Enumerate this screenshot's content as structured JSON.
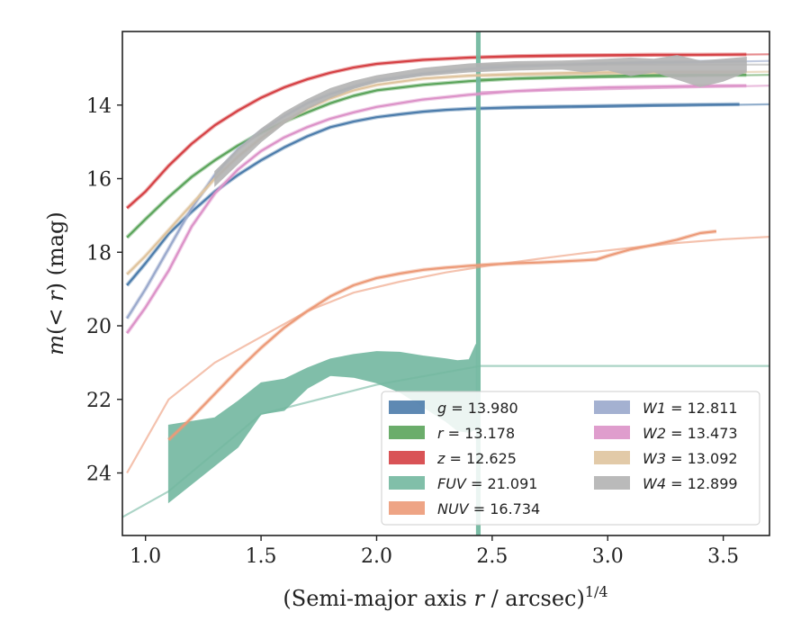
{
  "chart_data": {
    "type": "line",
    "title": "",
    "xlabel": "(Semi-major axis r / arcsec)",
    "xlabel_parts": {
      "main": "(Semi-major axis ",
      "var": "r",
      "rest": " / arcsec)",
      "sup": "1/4"
    },
    "ylabel": "m(< r) (mag)",
    "ylabel_parts": {
      "m": "m",
      "open": "(",
      "lt": "< ",
      "r": "r",
      "close": ")",
      "unit": " (mag)"
    },
    "xlim": [
      0.9,
      3.7
    ],
    "ylim": [
      25.7,
      12.0
    ],
    "y_inverted": true,
    "xticks": [
      1.0,
      1.5,
      2.0,
      2.5,
      3.0,
      3.5
    ],
    "xtick_labels": [
      "1.0",
      "1.5",
      "2.0",
      "2.5",
      "3.0",
      "3.5"
    ],
    "yticks": [
      14,
      16,
      18,
      20,
      22,
      24
    ],
    "ytick_labels": [
      "14",
      "16",
      "18",
      "20",
      "22",
      "24"
    ],
    "grid": false,
    "legend_position": "bottom-right",
    "series": [
      {
        "name": "g",
        "label": "g = 13.980",
        "color": "#4c7cab",
        "x": [
          0.92,
          1.0,
          1.1,
          1.2,
          1.3,
          1.4,
          1.5,
          1.6,
          1.7,
          1.8,
          1.9,
          2.0,
          2.1,
          2.2,
          2.3,
          2.4,
          2.6,
          2.8,
          3.0,
          3.2,
          3.4,
          3.57
        ],
        "y": [
          18.9,
          18.3,
          17.5,
          16.9,
          16.35,
          15.9,
          15.5,
          15.15,
          14.85,
          14.6,
          14.45,
          14.33,
          14.25,
          14.18,
          14.13,
          14.1,
          14.06,
          14.04,
          14.02,
          14.0,
          13.99,
          13.98
        ],
        "ext_x": [
          2.45,
          3.7
        ],
        "ext_y": [
          14.1,
          13.98
        ]
      },
      {
        "name": "r",
        "label": "r = 13.178",
        "color": "#5ba45b",
        "x": [
          0.92,
          1.0,
          1.1,
          1.2,
          1.3,
          1.4,
          1.5,
          1.6,
          1.7,
          1.8,
          1.9,
          2.0,
          2.2,
          2.4,
          2.6,
          2.8,
          3.0,
          3.2,
          3.4,
          3.6
        ],
        "y": [
          17.6,
          17.1,
          16.5,
          15.95,
          15.5,
          15.1,
          14.75,
          14.45,
          14.2,
          13.95,
          13.75,
          13.6,
          13.45,
          13.35,
          13.28,
          13.24,
          13.21,
          13.19,
          13.18,
          13.178
        ],
        "ext_x": [
          2.45,
          3.7
        ],
        "ext_y": [
          13.3,
          13.18
        ]
      },
      {
        "name": "z",
        "label": "z = 12.625",
        "color": "#d54044",
        "x": [
          0.92,
          1.0,
          1.1,
          1.2,
          1.3,
          1.4,
          1.5,
          1.6,
          1.7,
          1.8,
          1.9,
          2.0,
          2.2,
          2.4,
          2.6,
          2.8,
          3.0,
          3.2,
          3.4,
          3.6
        ],
        "y": [
          16.8,
          16.35,
          15.65,
          15.05,
          14.55,
          14.15,
          13.8,
          13.52,
          13.3,
          13.12,
          12.98,
          12.88,
          12.77,
          12.71,
          12.67,
          12.65,
          12.64,
          12.63,
          12.63,
          12.625
        ],
        "ext_x": [
          2.45,
          3.7
        ],
        "ext_y": [
          12.7,
          12.62
        ]
      },
      {
        "name": "FUV",
        "label": "FUV = 21.091",
        "color": "#73b8a0",
        "band_x": [
          1.1,
          1.2,
          1.3,
          1.4,
          1.5,
          1.6,
          1.7,
          1.8,
          1.9,
          2.0,
          2.1,
          2.2,
          2.3,
          2.35,
          2.4,
          2.43
        ],
        "band_lo": [
          24.8,
          24.3,
          23.8,
          23.3,
          22.4,
          22.3,
          21.7,
          21.35,
          21.4,
          21.55,
          21.8,
          22.2,
          22.6,
          22.85,
          22.9,
          22.8
        ],
        "band_hi": [
          22.7,
          22.6,
          22.5,
          22.05,
          21.55,
          21.45,
          21.15,
          20.9,
          20.78,
          20.7,
          20.72,
          20.82,
          20.9,
          20.95,
          20.92,
          20.5
        ],
        "spike_x": [
          2.43,
          2.45
        ],
        "spike_top": 12.0,
        "spike_bottom": 25.7,
        "ext_x": [
          0.9,
          1.1,
          1.5,
          2.0,
          2.45,
          3.7
        ],
        "ext_y": [
          25.2,
          24.5,
          22.4,
          21.6,
          21.09,
          21.09
        ]
      },
      {
        "name": "NUV",
        "label": "NUV = 16.734",
        "color": "#ec9a78",
        "x": [
          1.1,
          1.2,
          1.3,
          1.4,
          1.5,
          1.6,
          1.7,
          1.8,
          1.9,
          2.0,
          2.1,
          2.2,
          2.3,
          2.4,
          2.5,
          2.6,
          2.7,
          2.8,
          2.9,
          2.95,
          3.0,
          3.1,
          3.2,
          3.3,
          3.4,
          3.47
        ],
        "y": [
          23.1,
          22.5,
          21.85,
          21.2,
          20.6,
          20.05,
          19.6,
          19.2,
          18.9,
          18.7,
          18.58,
          18.48,
          18.42,
          18.37,
          18.33,
          18.3,
          18.28,
          18.25,
          18.22,
          18.2,
          18.1,
          17.92,
          17.8,
          17.66,
          17.48,
          17.43
        ],
        "ext_x": [
          0.92,
          1.1,
          1.3,
          1.5,
          1.7,
          1.9,
          2.1,
          2.3,
          2.5,
          2.7,
          2.9,
          3.1,
          3.3,
          3.5,
          3.7
        ],
        "ext_y": [
          24.0,
          22.0,
          21.0,
          20.3,
          19.6,
          19.1,
          18.8,
          18.55,
          18.35,
          18.18,
          18.02,
          17.88,
          17.75,
          17.65,
          17.58
        ]
      },
      {
        "name": "W1",
        "label": "W1 = 12.811",
        "color": "#9aa9cc",
        "x": [
          0.92,
          1.0,
          1.1,
          1.2,
          1.3,
          1.4,
          1.5,
          1.6,
          1.7,
          1.8,
          1.9,
          2.0,
          2.2,
          2.4,
          2.6,
          2.8,
          3.0,
          3.2,
          3.4,
          3.6
        ],
        "y": [
          19.8,
          19.0,
          17.9,
          16.8,
          15.9,
          15.2,
          14.7,
          14.3,
          13.95,
          13.7,
          13.5,
          13.33,
          13.15,
          13.02,
          12.95,
          12.9,
          12.86,
          12.83,
          12.82,
          12.811
        ],
        "ext_x": [
          2.45,
          3.7
        ],
        "ext_y": [
          12.95,
          12.8
        ]
      },
      {
        "name": "W2",
        "label": "W2 = 13.473",
        "color": "#dc92c8",
        "x": [
          0.92,
          1.0,
          1.1,
          1.2,
          1.3,
          1.4,
          1.5,
          1.6,
          1.7,
          1.8,
          1.9,
          2.0,
          2.2,
          2.4,
          2.6,
          2.8,
          3.0,
          3.2,
          3.4,
          3.6
        ],
        "y": [
          20.2,
          19.5,
          18.5,
          17.3,
          16.4,
          15.75,
          15.25,
          14.88,
          14.6,
          14.37,
          14.2,
          14.05,
          13.85,
          13.72,
          13.62,
          13.56,
          13.52,
          13.5,
          13.48,
          13.473
        ],
        "ext_x": [
          2.45,
          3.7
        ],
        "ext_y": [
          13.65,
          13.47
        ]
      },
      {
        "name": "W3",
        "label": "W3 = 13.092",
        "color": "#dfc49e",
        "x": [
          0.92,
          1.0,
          1.1,
          1.2,
          1.3,
          1.4,
          1.5,
          1.6,
          1.7,
          1.8,
          1.9,
          2.0,
          2.2,
          2.4,
          2.6,
          2.8,
          3.0,
          3.2,
          3.4,
          3.6
        ],
        "y": [
          18.6,
          18.1,
          17.4,
          16.7,
          16.0,
          15.4,
          14.9,
          14.45,
          14.1,
          13.82,
          13.6,
          13.45,
          13.28,
          13.2,
          13.16,
          13.13,
          13.11,
          13.1,
          13.095,
          13.092
        ],
        "ext_x": [
          2.45,
          3.7
        ],
        "ext_y": [
          13.2,
          13.09
        ]
      },
      {
        "name": "W4",
        "label": "W4 = 12.899",
        "color": "#b3b3b3",
        "band_x": [
          1.3,
          1.4,
          1.5,
          1.6,
          1.7,
          1.8,
          1.9,
          2.0,
          2.2,
          2.4,
          2.6,
          2.8,
          2.9,
          3.0,
          3.1,
          3.2,
          3.3,
          3.4,
          3.5,
          3.6
        ],
        "band_lo": [
          16.2,
          15.6,
          15.0,
          14.5,
          14.1,
          13.8,
          13.55,
          13.38,
          13.2,
          13.1,
          13.05,
          13.02,
          13.1,
          13.05,
          13.2,
          13.1,
          13.3,
          13.5,
          13.35,
          13.1
        ],
        "band_hi": [
          15.8,
          15.2,
          14.65,
          14.2,
          13.85,
          13.55,
          13.35,
          13.2,
          13.0,
          12.88,
          12.82,
          12.8,
          12.78,
          12.75,
          12.72,
          12.75,
          12.65,
          12.8,
          12.75,
          12.7
        ],
        "ext_x": [
          2.45,
          3.7
        ],
        "ext_y": [
          12.9,
          12.9
        ]
      }
    ]
  }
}
